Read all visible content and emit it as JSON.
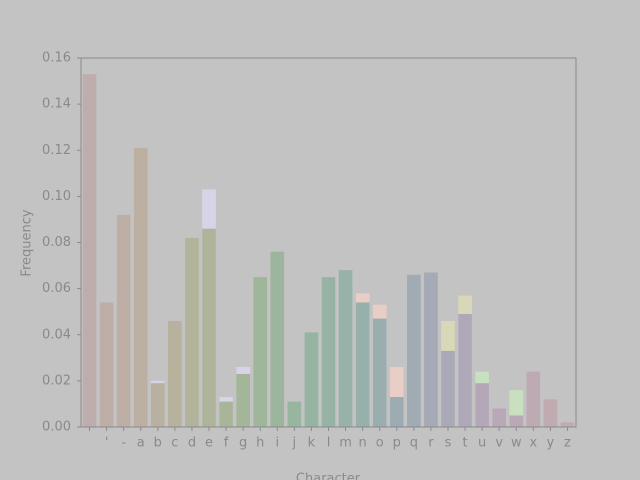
{
  "chart_data": {
    "type": "bar",
    "x_label": "Character",
    "y_label": "Frequency",
    "categories": [
      null,
      "'",
      "-",
      "a",
      "b",
      "c",
      "d",
      "e",
      "f",
      "g",
      "h",
      "i",
      "j",
      "k",
      "l",
      "m",
      "n",
      "o",
      "p",
      "q",
      "r",
      "s",
      "t",
      "u",
      "v",
      "w",
      "x",
      "y",
      "z"
    ],
    "series": [
      {
        "colors": [
          "#bfadad",
          "#bfaea8",
          "#bdafa5",
          "#bbb0a2",
          "#b9b19f",
          "#b6b29d",
          "#b2b39b",
          "#aeb49a",
          "#a9b599",
          "#a4b699",
          "#9fb69a",
          "#9bb69c",
          "#98b59f",
          "#96b4a2",
          "#96b3a6",
          "#97b2a9",
          "#98b0ac",
          "#9aaeaf",
          "#9dacb2",
          "#a1abb4",
          "#a5aab6",
          "#aaa9b7",
          "#afa8b8",
          "#b4a8b8",
          "#b8a8b8",
          "#bba8b6",
          "#bdaab3",
          "#bfabb0",
          "#c0acae"
        ],
        "values": [
          0.153,
          0.054,
          0.092,
          0.121,
          0.019,
          0.046,
          0.082,
          0.086,
          0.011,
          0.023,
          0.065,
          0.076,
          0.011,
          0.041,
          0.065,
          0.068,
          0.054,
          0.047,
          0.013,
          0.066,
          0.067,
          0.033,
          0.049,
          0.019,
          0.008,
          0.005,
          0.024,
          0.012,
          0.002
        ]
      },
      {
        "colors": [
          null,
          null,
          null,
          null,
          "#d8d4e8",
          null,
          null,
          "#d8d4e8",
          "#d8d4e8",
          "#d8d4e8",
          null,
          null,
          null,
          null,
          null,
          null,
          "#e8cec6",
          "#e8cec6",
          "#e8cec6",
          null,
          null,
          "#d8d8b8",
          "#d8d8b8",
          "#c8e0c0",
          null,
          "#c8e0c0",
          null,
          null,
          null
        ],
        "values": [
          null,
          null,
          null,
          null,
          0.02,
          null,
          null,
          0.103,
          0.013,
          0.026,
          null,
          null,
          null,
          null,
          null,
          null,
          0.058,
          0.053,
          0.026,
          null,
          null,
          0.046,
          0.057,
          0.024,
          null,
          0.016,
          null,
          null,
          null
        ]
      }
    ],
    "ylim": [
      0,
      0.16
    ],
    "yticks": [
      {
        "value": 0,
        "label": "0.00"
      },
      {
        "value": 0.02,
        "label": "0.02"
      },
      {
        "value": 0.04,
        "label": "0.04"
      },
      {
        "value": 0.06,
        "label": "0.06"
      },
      {
        "value": 0.08,
        "label": "0.08"
      },
      {
        "value": 0.1,
        "label": "0.10"
      },
      {
        "value": 0.12,
        "label": "0.12"
      },
      {
        "value": 0.14,
        "label": "0.14"
      },
      {
        "value": 0.16,
        "label": "0.16"
      }
    ]
  }
}
